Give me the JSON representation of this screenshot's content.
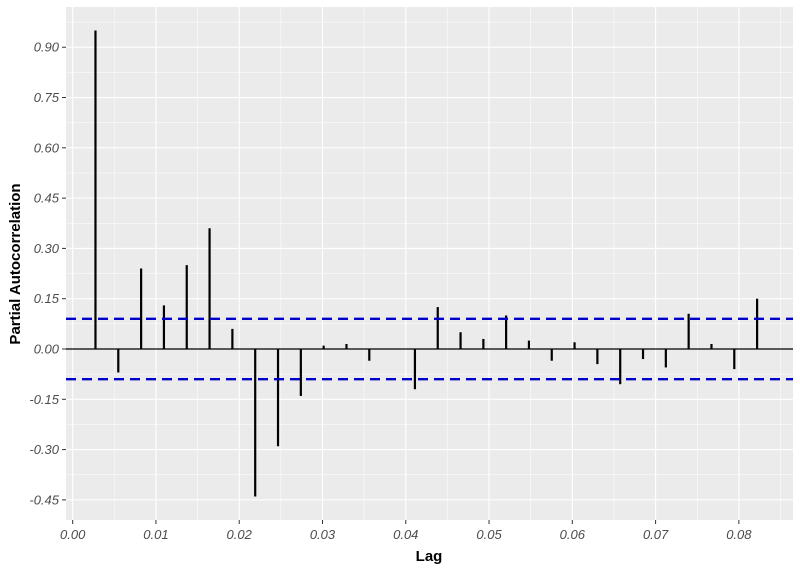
{
  "chart_data": {
    "type": "bar",
    "xlabel": "Lag",
    "ylabel": "Partial Autocorrelation",
    "xlim": [
      -0.0008,
      0.0865
    ],
    "ylim": [
      -0.51,
      1.02
    ],
    "x_ticks": [
      "0.00",
      "0.01",
      "0.02",
      "0.03",
      "0.04",
      "0.05",
      "0.06",
      "0.07",
      "0.08"
    ],
    "y_ticks": [
      "-0.45",
      "-0.30",
      "-0.15",
      "0.00",
      "0.15",
      "0.30",
      "0.45",
      "0.60",
      "0.75",
      "0.90"
    ],
    "grid": true,
    "confidence_bound": 0.09,
    "x": [
      0.00274,
      0.00548,
      0.00822,
      0.01096,
      0.0137,
      0.01644,
      0.01918,
      0.02192,
      0.02466,
      0.0274,
      0.03014,
      0.03288,
      0.03562,
      0.03836,
      0.0411,
      0.04384,
      0.04658,
      0.04932,
      0.05205,
      0.05479,
      0.05753,
      0.06027,
      0.06301,
      0.06575,
      0.06849,
      0.07123,
      0.07397,
      0.07671,
      0.07945,
      0.08219
    ],
    "values": [
      0.95,
      -0.07,
      0.24,
      0.13,
      0.25,
      0.36,
      0.06,
      -0.44,
      -0.29,
      -0.14,
      0.01,
      0.015,
      -0.035,
      0.0,
      -0.12,
      0.125,
      0.05,
      0.03,
      0.1,
      0.025,
      -0.035,
      0.02,
      -0.045,
      -0.105,
      -0.03,
      -0.055,
      0.105,
      0.015,
      -0.06,
      0.15
    ],
    "colors": {
      "panel": "#ebebeb",
      "grid": "#ffffff",
      "bar": "#000000",
      "bound": "#0000cc"
    }
  }
}
